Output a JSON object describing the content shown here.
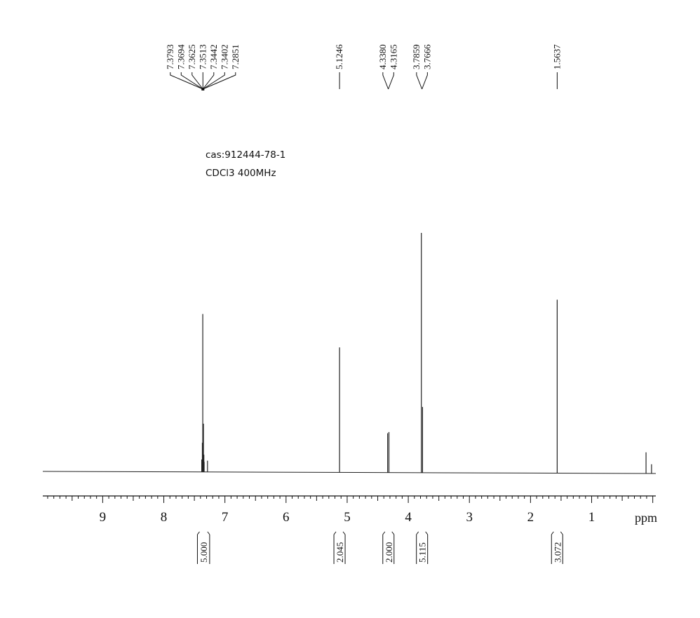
{
  "sample": {
    "cas_label": "cas:912444-78-1",
    "conditions_label": "CDCl3  400MHz"
  },
  "chart_data": {
    "type": "line",
    "title": "",
    "xlabel": "ppm",
    "ylabel": "",
    "x_axis_reversed": true,
    "xlim": [
      9.98,
      -0.05
    ],
    "ylim": [
      0,
      1
    ],
    "grid": false,
    "legend": "none",
    "x_ticks": [
      9,
      8,
      7,
      6,
      5,
      4,
      3,
      2,
      1
    ],
    "x_tick_labels": [
      "9",
      "8",
      "7",
      "6",
      "5",
      "4",
      "3",
      "2",
      "1"
    ],
    "line_color": "#222222",
    "peaks": [
      {
        "ppm": 7.3793,
        "height": 0.05
      },
      {
        "ppm": 7.3694,
        "height": 0.12
      },
      {
        "ppm": 7.3625,
        "height": 0.66
      },
      {
        "ppm": 7.3513,
        "height": 0.2
      },
      {
        "ppm": 7.3442,
        "height": 0.07
      },
      {
        "ppm": 7.3402,
        "height": 0.04
      },
      {
        "ppm": 7.2851,
        "height": 0.045
      },
      {
        "ppm": 5.1246,
        "height": 0.52
      },
      {
        "ppm": 4.338,
        "height": 0.16
      },
      {
        "ppm": 4.3165,
        "height": 0.165
      },
      {
        "ppm": 3.7859,
        "height": 1.0
      },
      {
        "ppm": 3.7666,
        "height": 0.27
      },
      {
        "ppm": 1.5637,
        "height": 0.72
      },
      {
        "ppm": 0.11,
        "height": 0.08
      },
      {
        "ppm": 0.02,
        "height": 0.03
      }
    ],
    "peak_labels": {
      "groups": [
        {
          "ppm_center": 7.36,
          "labels": [
            "7.3793",
            "7.3694",
            "7.3625",
            "7.3513",
            "7.3442",
            "7.3402",
            "7.2851"
          ]
        },
        {
          "ppm_center": 5.1246,
          "labels": [
            "5.1246"
          ]
        },
        {
          "ppm_center": 4.327,
          "labels": [
            "4.3380",
            "4.3165"
          ]
        },
        {
          "ppm_center": 3.776,
          "labels": [
            "3.7859",
            "3.7666"
          ]
        },
        {
          "ppm_center": 1.5637,
          "labels": [
            "1.5637"
          ]
        }
      ]
    },
    "integrals": [
      {
        "from": 7.45,
        "to": 7.25,
        "value": "5.000"
      },
      {
        "from": 5.2,
        "to": 5.05,
        "value": "2.045"
      },
      {
        "from": 4.4,
        "to": 4.25,
        "value": "2.000"
      },
      {
        "from": 3.85,
        "to": 3.7,
        "value": "5.115"
      },
      {
        "from": 1.65,
        "to": 1.48,
        "value": "3.072"
      }
    ]
  }
}
